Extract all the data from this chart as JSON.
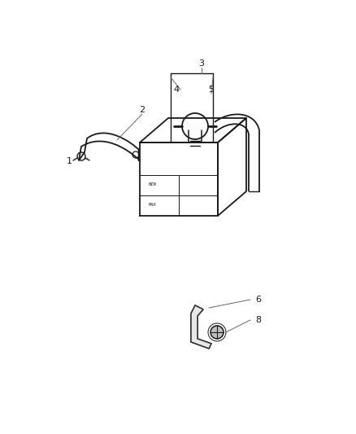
{
  "background_color": "#ffffff",
  "line_color": "#1a1a1a",
  "label_color": "#1a1a1a",
  "leader_color": "#666666",
  "figsize": [
    4.38,
    5.33
  ],
  "dpi": 100,
  "ax_bg": "#ffffff"
}
